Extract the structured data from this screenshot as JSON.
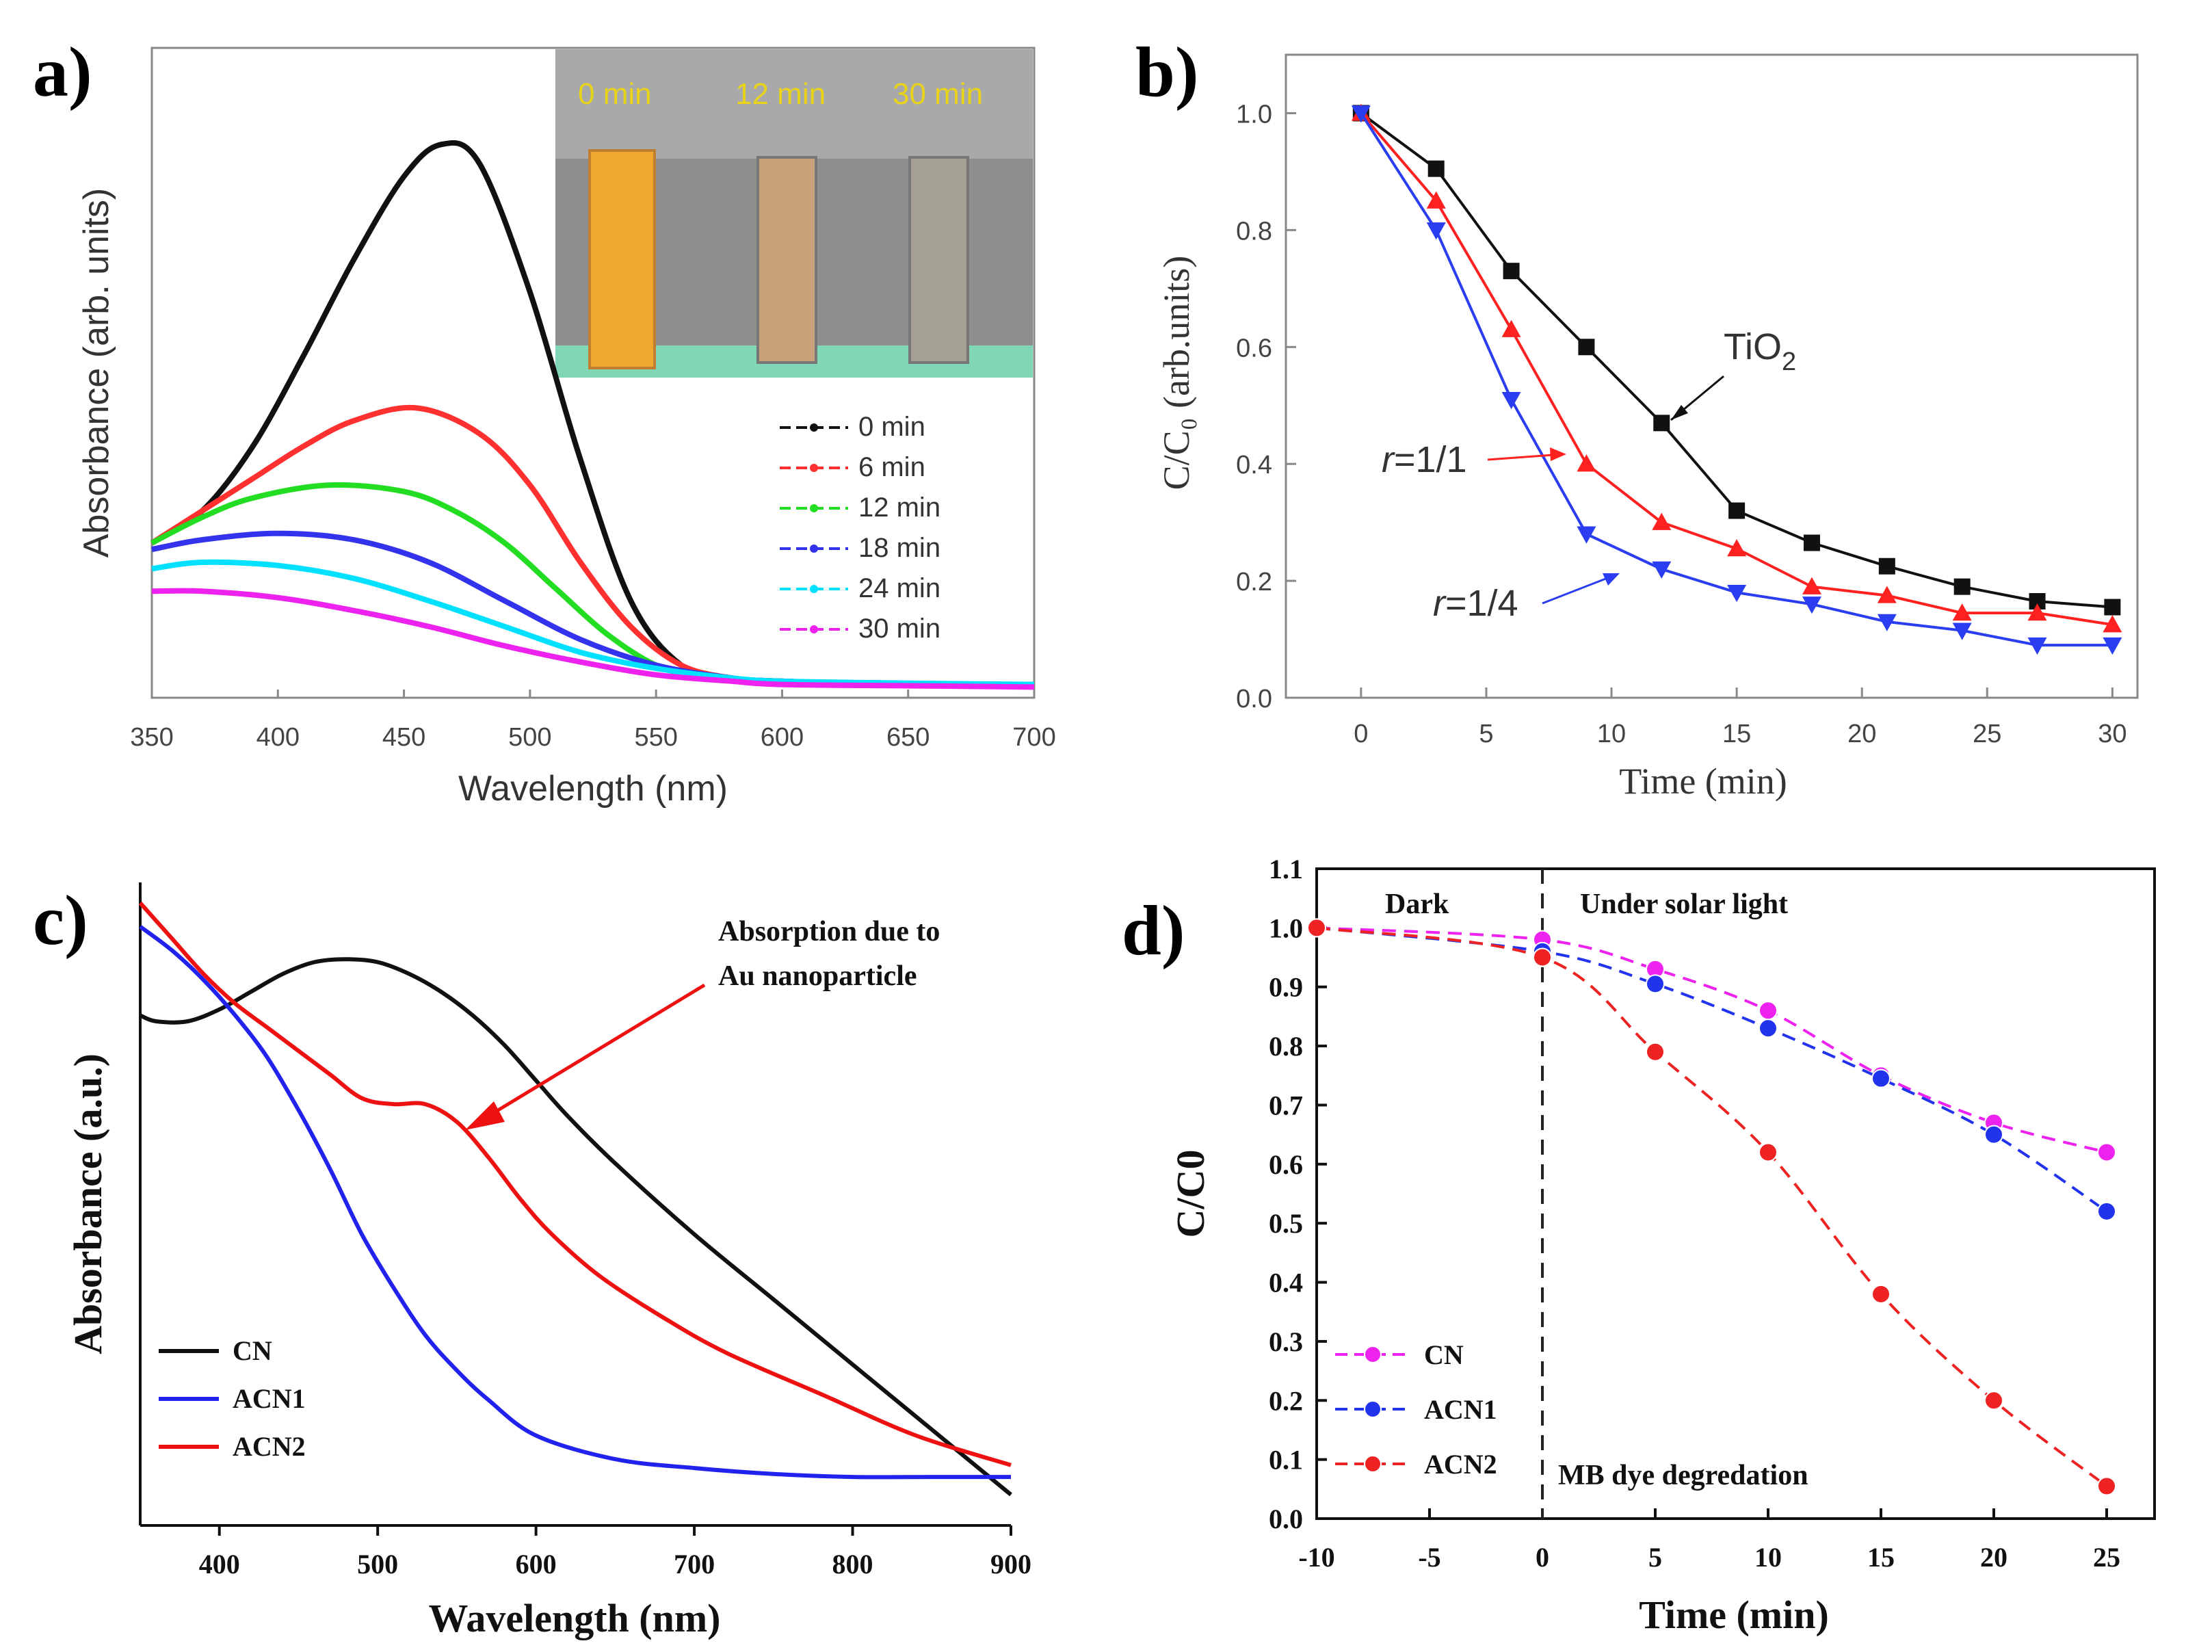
{
  "figure": {
    "panel_labels": [
      "a)",
      "b)",
      "c)",
      "d)"
    ]
  },
  "chart_data": [
    {
      "panel": "a",
      "type": "line",
      "xlabel": "Wavelength (nm)",
      "ylabel": "Absorbance (arb. units)",
      "xlim": [
        350,
        700
      ],
      "xticks": [
        350,
        400,
        450,
        500,
        550,
        600,
        650,
        700
      ],
      "ylim": [
        0,
        1.0
      ],
      "inset_labels": [
        "0 min",
        "12 min",
        "30 min"
      ],
      "legend_position": "middle-right",
      "series": [
        {
          "name": "0 min",
          "color": "#111111",
          "x": [
            350,
            370,
            390,
            410,
            430,
            450,
            465,
            480,
            500,
            520,
            540,
            560,
            580,
            600,
            650,
            700
          ],
          "values": [
            0.23,
            0.28,
            0.38,
            0.52,
            0.67,
            0.8,
            0.85,
            0.82,
            0.62,
            0.36,
            0.14,
            0.04,
            0.02,
            0.015,
            0.01,
            0.01
          ]
        },
        {
          "name": "6 min",
          "color": "#ff3030",
          "x": [
            350,
            370,
            390,
            410,
            430,
            455,
            480,
            500,
            520,
            540,
            560,
            580,
            600,
            650,
            700
          ],
          "values": [
            0.23,
            0.28,
            0.33,
            0.38,
            0.42,
            0.44,
            0.4,
            0.32,
            0.2,
            0.1,
            0.04,
            0.02,
            0.015,
            0.01,
            0.01
          ]
        },
        {
          "name": "12 min",
          "color": "#22dd22",
          "x": [
            350,
            370,
            390,
            420,
            450,
            470,
            490,
            510,
            530,
            550,
            570,
            600,
            650,
            700
          ],
          "values": [
            0.23,
            0.27,
            0.3,
            0.32,
            0.31,
            0.28,
            0.23,
            0.16,
            0.09,
            0.04,
            0.02,
            0.015,
            0.01,
            0.01
          ]
        },
        {
          "name": "18 min",
          "color": "#3333ee",
          "x": [
            350,
            370,
            400,
            430,
            460,
            490,
            520,
            550,
            580,
            600,
            650,
            700
          ],
          "values": [
            0.22,
            0.235,
            0.245,
            0.235,
            0.2,
            0.14,
            0.08,
            0.04,
            0.02,
            0.015,
            0.01,
            0.01
          ]
        },
        {
          "name": "24 min",
          "color": "#00e0ff",
          "x": [
            350,
            370,
            400,
            430,
            460,
            490,
            520,
            550,
            580,
            600,
            650,
            700
          ],
          "values": [
            0.19,
            0.2,
            0.195,
            0.175,
            0.14,
            0.1,
            0.06,
            0.035,
            0.02,
            0.015,
            0.012,
            0.01
          ]
        },
        {
          "name": "30 min",
          "color": "#ee22ee",
          "x": [
            350,
            370,
            400,
            430,
            460,
            490,
            520,
            550,
            580,
            600,
            650,
            700
          ],
          "values": [
            0.155,
            0.155,
            0.145,
            0.125,
            0.1,
            0.07,
            0.045,
            0.025,
            0.015,
            0.01,
            0.008,
            0.006
          ]
        }
      ]
    },
    {
      "panel": "b",
      "type": "line",
      "xlabel": "Time (min)",
      "ylabel": "C/C₀ (arb.units)",
      "xlim": [
        -3,
        31
      ],
      "ylim": [
        0,
        1.1
      ],
      "xticks": [
        0,
        5,
        10,
        15,
        20,
        25,
        30
      ],
      "yticks": [
        0.0,
        0.2,
        0.4,
        0.6,
        0.8,
        1.0
      ],
      "x": [
        0,
        3,
        6,
        9,
        12,
        15,
        18,
        21,
        24,
        27,
        30
      ],
      "annotations": [
        "TiO",
        "2",
        "r",
        "=1/1",
        "r",
        "=1/4"
      ],
      "series": [
        {
          "name": "TiO2",
          "color": "#111111",
          "marker": "square",
          "values": [
            1.0,
            0.905,
            0.73,
            0.6,
            0.47,
            0.32,
            0.265,
            0.225,
            0.19,
            0.165,
            0.155
          ]
        },
        {
          "name": "r=1/1",
          "color": "#ff2020",
          "marker": "triangle-up",
          "values": [
            1.0,
            0.85,
            0.63,
            0.4,
            0.3,
            0.255,
            0.19,
            0.175,
            0.145,
            0.145,
            0.125
          ]
        },
        {
          "name": "r=1/4",
          "color": "#2a3df0",
          "marker": "triangle-down",
          "values": [
            1.0,
            0.8,
            0.51,
            0.28,
            0.22,
            0.18,
            0.16,
            0.13,
            0.115,
            0.09,
            0.09
          ]
        }
      ]
    },
    {
      "panel": "c",
      "type": "line",
      "xlabel": "Wavelength (nm)",
      "ylabel": "Absorbance (a.u.)",
      "xlim": [
        350,
        900
      ],
      "xticks": [
        400,
        500,
        600,
        700,
        800,
        900
      ],
      "ylim": [
        0,
        1.0
      ],
      "annotation": [
        "Absorption due to",
        "Au nanoparticle"
      ],
      "legend_position": "bottom-left",
      "series": [
        {
          "name": "CN",
          "color": "#111111",
          "x": [
            350,
            360,
            380,
            400,
            420,
            440,
            460,
            480,
            500,
            520,
            540,
            560,
            580,
            600,
            620,
            650,
            700,
            750,
            800,
            850,
            900
          ],
          "values": [
            0.81,
            0.8,
            0.8,
            0.82,
            0.85,
            0.88,
            0.9,
            0.905,
            0.9,
            0.88,
            0.85,
            0.81,
            0.76,
            0.7,
            0.64,
            0.56,
            0.44,
            0.33,
            0.22,
            0.11,
            0.0
          ]
        },
        {
          "name": "ACN1",
          "color": "#2222ee",
          "x": [
            350,
            370,
            390,
            410,
            430,
            450,
            470,
            490,
            510,
            530,
            550,
            570,
            600,
            650,
            700,
            750,
            800,
            850,
            900
          ],
          "values": [
            0.96,
            0.92,
            0.87,
            0.81,
            0.74,
            0.65,
            0.55,
            0.44,
            0.35,
            0.27,
            0.21,
            0.16,
            0.1,
            0.06,
            0.045,
            0.035,
            0.03,
            0.03,
            0.03
          ]
        },
        {
          "name": "ACN2",
          "color": "#ee1111",
          "x": [
            350,
            370,
            390,
            410,
            430,
            450,
            470,
            490,
            510,
            530,
            550,
            570,
            590,
            610,
            640,
            680,
            720,
            780,
            840,
            900
          ],
          "values": [
            1.0,
            0.94,
            0.88,
            0.83,
            0.79,
            0.75,
            0.71,
            0.67,
            0.66,
            0.66,
            0.63,
            0.57,
            0.5,
            0.44,
            0.37,
            0.3,
            0.24,
            0.17,
            0.1,
            0.05
          ]
        }
      ]
    },
    {
      "panel": "d",
      "type": "line",
      "xlabel": "Time (min)",
      "ylabel": "C/C0",
      "xlim": [
        -10,
        26
      ],
      "ylim": [
        0,
        1.1
      ],
      "xticks": [
        -10,
        -5,
        0,
        5,
        10,
        15,
        20,
        25
      ],
      "yticks": [
        0.0,
        0.1,
        0.2,
        0.3,
        0.4,
        0.5,
        0.6,
        0.7,
        0.8,
        0.9,
        1.0,
        1.1
      ],
      "regions": [
        "Dark",
        "Under solar light"
      ],
      "annotation": "MB dye degredation",
      "legend_position": "bottom-left",
      "x": [
        -10,
        0,
        5,
        10,
        15,
        20,
        25
      ],
      "series": [
        {
          "name": "CN",
          "color": "#ee22ee",
          "values": [
            1.0,
            0.98,
            0.93,
            0.86,
            0.75,
            0.67,
            0.62
          ]
        },
        {
          "name": "ACN1",
          "color": "#2233ee",
          "values": [
            1.0,
            0.96,
            0.905,
            0.83,
            0.745,
            0.65,
            0.52
          ]
        },
        {
          "name": "ACN2",
          "color": "#ee2222",
          "values": [
            1.0,
            0.95,
            0.79,
            0.62,
            0.38,
            0.2,
            0.055
          ]
        }
      ]
    }
  ]
}
